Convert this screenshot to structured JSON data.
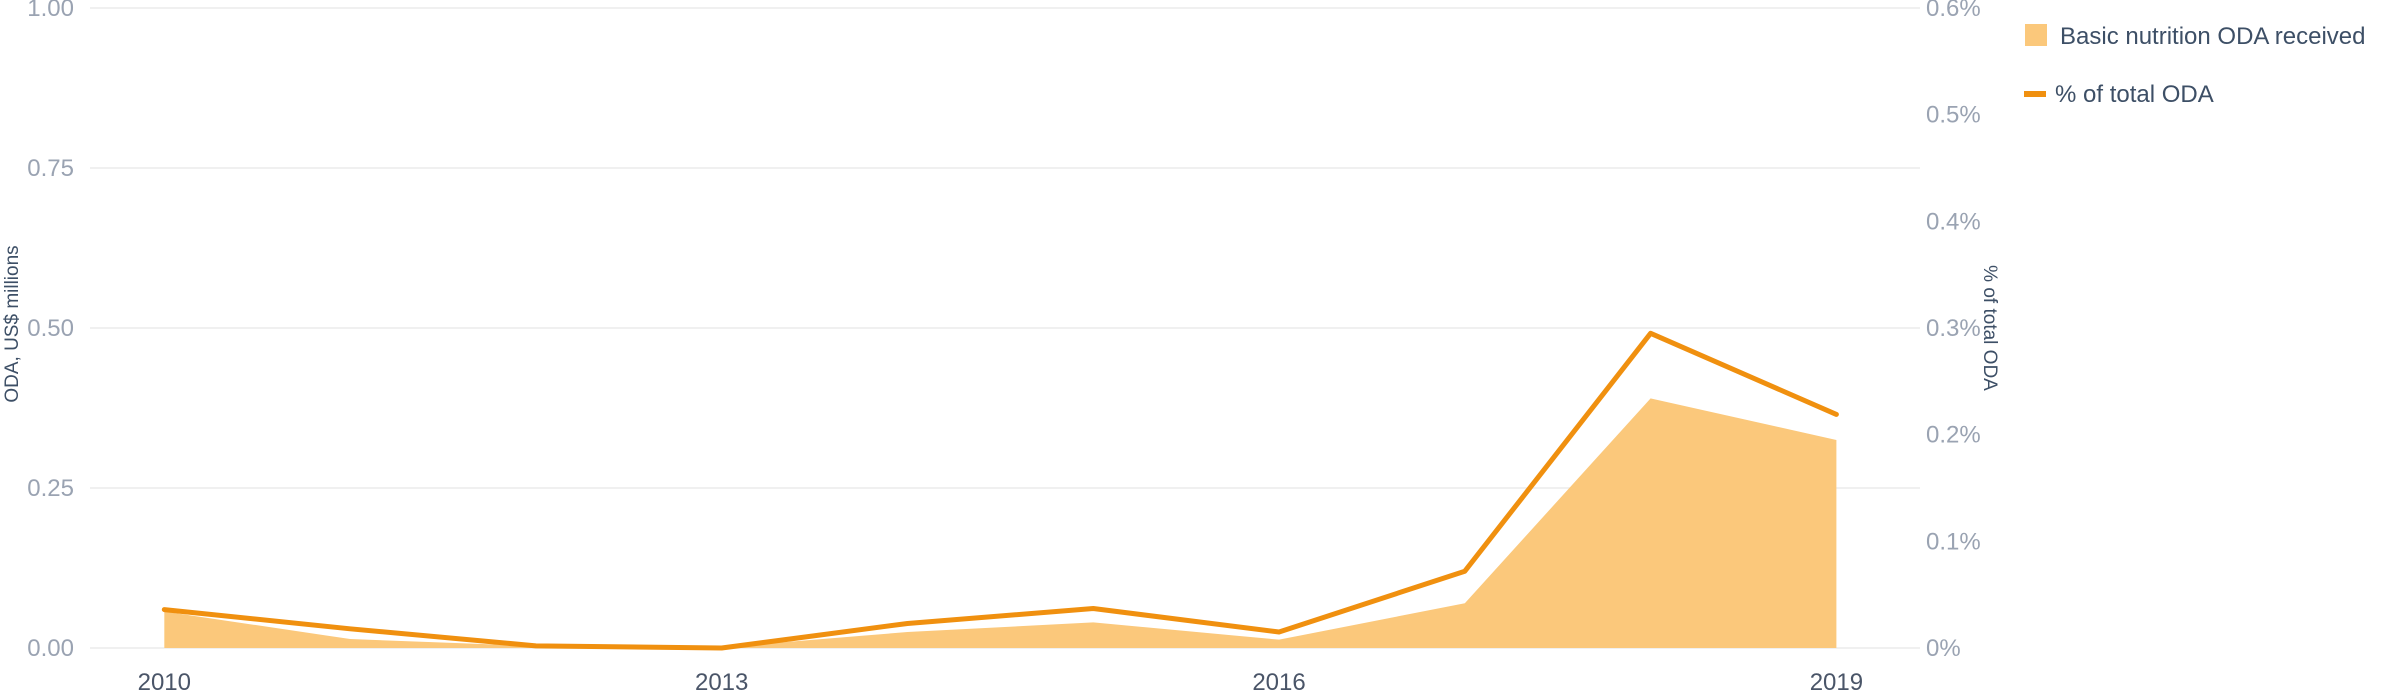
{
  "chart_data": {
    "type": "area",
    "x": [
      2010,
      2011,
      2012,
      2013,
      2014,
      2015,
      2016,
      2017,
      2018,
      2019
    ],
    "x_ticks": [
      "2010",
      "2013",
      "2016",
      "2019"
    ],
    "xlim": [
      2009.6,
      2019.45
    ],
    "series": [
      {
        "name": "Basic nutrition ODA received",
        "kind": "area",
        "axis": "left",
        "color": "#fbc87b",
        "values": [
          0.057,
          0.014,
          0.003,
          0.001,
          0.025,
          0.04,
          0.013,
          0.07,
          0.39,
          0.325
        ]
      },
      {
        "name": "% of total ODA",
        "kind": "line",
        "axis": "right",
        "color": "#f0900f",
        "values": [
          0.036,
          0.018,
          0.002,
          0.0,
          0.023,
          0.037,
          0.015,
          0.072,
          0.295,
          0.219
        ]
      }
    ],
    "y_left": {
      "label": "ODA, US$ millions",
      "ylim": [
        0,
        1
      ],
      "ticks": [
        "0.00",
        "0.25",
        "0.50",
        "0.75",
        "1.00"
      ]
    },
    "y_right": {
      "label": "% of total ODA",
      "ylim": [
        0,
        0.6
      ],
      "ticks": [
        "0%",
        "0.1%",
        "0.2%",
        "0.3%",
        "0.4%",
        "0.5%",
        "0.6%"
      ]
    },
    "grid": true,
    "legend_position": "top-right"
  }
}
